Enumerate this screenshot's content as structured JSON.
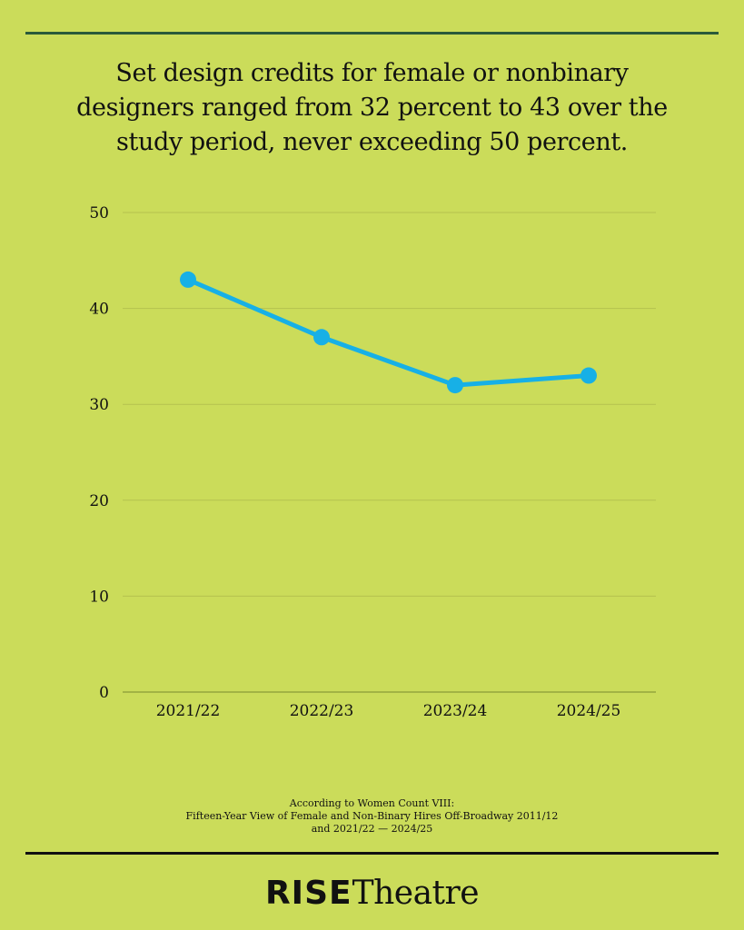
{
  "headline": {
    "line1": "Set design credits for female or nonbinary",
    "line2": "designers ranged from 32 percent to 43 over the",
    "line3": "study period, never exceeding 50 percent."
  },
  "chart_data": {
    "type": "line",
    "categories": [
      "2021/22",
      "2022/23",
      "2023/24",
      "2024/25"
    ],
    "series": [
      {
        "values": [
          43,
          37,
          32,
          33
        ]
      }
    ],
    "xlabel": "",
    "ylabel": "",
    "ylim": [
      0,
      50
    ],
    "yticks": [
      0,
      10,
      20,
      30,
      40,
      50
    ],
    "grid": true,
    "line_color": "#17b0e6",
    "grid_color": "#b4c24f",
    "axis_color": "#8a9a38"
  },
  "source": {
    "line1": "According to Women Count VIII:",
    "line2": "Fifteen-Year View of Female and Non-Binary Hires Off-Broadway 2011/12",
    "line3": "and 2021/22 — 2024/25"
  },
  "brand": {
    "bold": "RISE",
    "light": "Theatre"
  },
  "colors": {
    "background": "#cbdc5a",
    "top_rule": "#2a5a3a",
    "bottom_rule": "#111111"
  }
}
